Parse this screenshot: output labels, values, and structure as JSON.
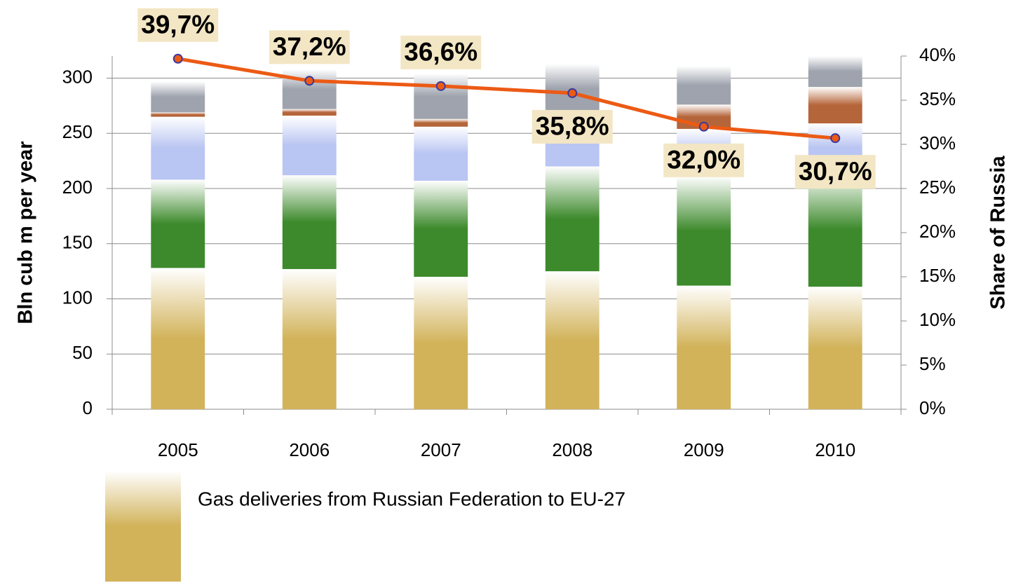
{
  "chart_data": {
    "type": "bar",
    "stacked": true,
    "categories": [
      "2005",
      "2006",
      "2007",
      "2008",
      "2009",
      "2010"
    ],
    "series": [
      {
        "name": "Gas deliveries from Russian Federation to EU-27",
        "color": "#d2b35a",
        "values": [
          128,
          127,
          120,
          125,
          112,
          111
        ]
      },
      {
        "color": "#3d8a2c",
        "values": [
          80,
          85,
          87,
          95,
          99,
          104
        ]
      },
      {
        "color": "#b9c5f2",
        "values": [
          57,
          54,
          49,
          45,
          43,
          44
        ]
      },
      {
        "color": "#b5653a",
        "values": [
          4,
          6,
          7,
          3,
          22,
          33
        ]
      },
      {
        "color": "#9ea3ad",
        "values": [
          28,
          36,
          41,
          45,
          35,
          28
        ]
      },
      {
        "type": "line",
        "axis": "y2",
        "color": "#ec5a14",
        "values": [
          39.7,
          37.2,
          36.6,
          35.8,
          32.0,
          30.7
        ],
        "value_labels": [
          "39,7%",
          "37,2%",
          "36,6%",
          "35,8%",
          "32,0%",
          "30,7%"
        ]
      }
    ],
    "ylabel": "Bln cub m per year",
    "y2label": "Share of Russia",
    "ylim": [
      0,
      320
    ],
    "yticks": [
      0,
      50,
      100,
      150,
      200,
      250,
      300
    ],
    "y2lim": [
      0,
      40
    ],
    "y2ticks": [
      {
        "value": 0,
        "label": "0%"
      },
      {
        "value": 5,
        "label": "5%"
      },
      {
        "value": 10,
        "label": "10%"
      },
      {
        "value": 15,
        "label": "15%"
      },
      {
        "value": 20,
        "label": "20%"
      },
      {
        "value": 25,
        "label": "25%"
      },
      {
        "value": 30,
        "label": "30%"
      },
      {
        "value": 35,
        "label": "35%"
      },
      {
        "value": 40,
        "label": "40%"
      }
    ],
    "grid": true
  }
}
